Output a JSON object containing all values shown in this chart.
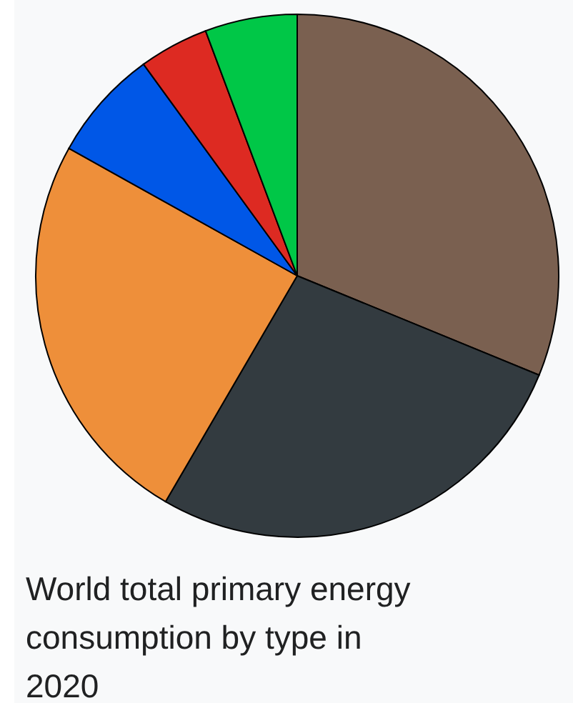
{
  "chart_data": {
    "type": "pie",
    "title": "World total primary energy consumption by type in 2020",
    "categories": [
      null,
      null,
      null,
      null,
      null,
      null
    ],
    "values": [
      31.2,
      27.2,
      24.7,
      6.9,
      4.3,
      5.7
    ],
    "colors": [
      "#7a6050",
      "#333b40",
      "#ee8f3a",
      "#0057e7",
      "#dd2a22",
      "#00c747"
    ]
  }
}
